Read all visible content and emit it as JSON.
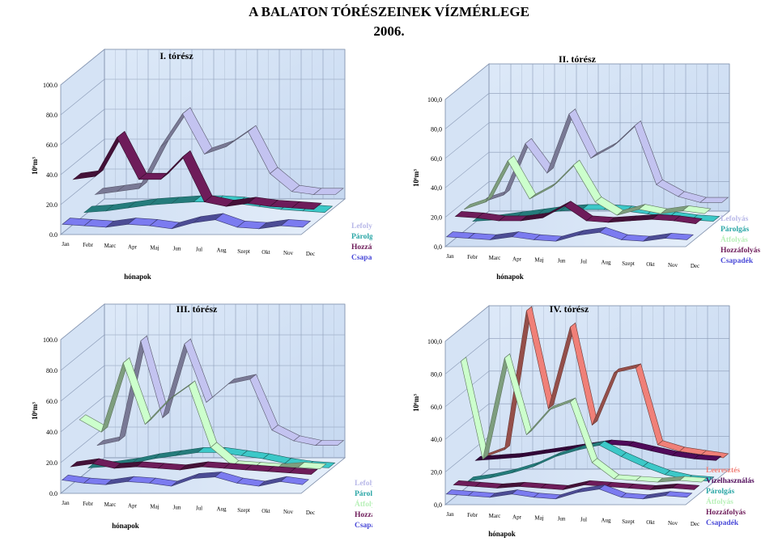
{
  "title": "A BALATON TÓRÉSZEINEK VÍZMÉRLEGE",
  "subtitle": "2006.",
  "colors": {
    "Lefolyás": "#c3c3f0",
    "Párolgás": "#3cc8c8",
    "Átfolyás": "#ccffcc",
    "Hozzáfolyás": "#6e1c5a",
    "Csapadék": "#7b7bf0",
    "Vízelhasználás": "#500a5a",
    "Leeresztés": "#f08078"
  },
  "legend_text_colors": {
    "Lefolyás": "#b8b8e8",
    "Párolgás": "#2aa6a6",
    "Átfolyás": "#b8f0b8",
    "Hozzáfolyás": "#6e1c5a",
    "Csapadék": "#4a4ad8",
    "Vízelhasználás": "#500a5a",
    "Leeresztés": "#f08078"
  },
  "chart_data": [
    {
      "type": "line",
      "title": "I. tórész",
      "xlabel": "hónapok",
      "ylabel": "10⁶m³",
      "categories": [
        "Jan",
        "Febr",
        "Marc",
        "Apr",
        "Maj",
        "Jun",
        "Jul",
        "Aug",
        "Szept",
        "Okt",
        "Nov",
        "Dec"
      ],
      "ylim": [
        0,
        100
      ],
      "yticks": [
        "0.0",
        "20.0",
        "40.0",
        "60.0",
        "80.0",
        "100.0"
      ],
      "series": [
        {
          "name": "Csapadék",
          "values": [
            6,
            5,
            4,
            6,
            5,
            3,
            7,
            9,
            4,
            3,
            5,
            4
          ]
        },
        {
          "name": "Hozzáfolyás",
          "values": [
            30,
            32,
            58,
            30,
            30,
            45,
            15,
            12,
            14,
            12,
            11,
            10
          ]
        },
        {
          "name": "Párolgás",
          "values": [
            2,
            3,
            5,
            7,
            8,
            9,
            9,
            8,
            6,
            4,
            3,
            2
          ]
        },
        {
          "name": "Lefolyás",
          "values": [
            8,
            10,
            12,
            40,
            62,
            35,
            40,
            50,
            22,
            10,
            8,
            8
          ]
        }
      ]
    },
    {
      "type": "line",
      "title": "II. tórész",
      "xlabel": "hónapok",
      "ylabel": "10⁶m³",
      "categories": [
        "Jan",
        "Febr",
        "Marc",
        "Apr",
        "Maj",
        "Jun",
        "Jul",
        "Aug",
        "Szept",
        "Okt",
        "Nov",
        "Dec"
      ],
      "ylim": [
        0,
        100
      ],
      "yticks": [
        "0,0",
        "20,0",
        "40,0",
        "60,0",
        "80,0",
        "100,0"
      ],
      "series": [
        {
          "name": "Csapadék",
          "values": [
            6,
            5,
            4,
            6,
            4,
            3,
            7,
            9,
            4,
            3,
            5,
            4
          ]
        },
        {
          "name": "Hozzáfolyás",
          "values": [
            15,
            14,
            12,
            12,
            14,
            22,
            12,
            11,
            12,
            13,
            12,
            10
          ]
        },
        {
          "name": "Átfolyás",
          "values": [
            15,
            20,
            48,
            22,
            30,
            45,
            20,
            11,
            15,
            12,
            14,
            12
          ]
        },
        {
          "name": "Párolgás",
          "values": [
            2,
            3,
            5,
            7,
            9,
            10,
            10,
            9,
            7,
            5,
            3,
            2
          ]
        },
        {
          "name": "Lefolyás",
          "values": [
            10,
            15,
            50,
            30,
            70,
            40,
            48,
            62,
            22,
            14,
            10,
            10
          ]
        }
      ]
    },
    {
      "type": "line",
      "title": "III. tórész",
      "xlabel": "hónapok",
      "ylabel": "10⁶m³",
      "categories": [
        "Jan",
        "Febr",
        "Marc",
        "Apr",
        "Maj",
        "Jun",
        "Jul",
        "Aug",
        "Szept",
        "Okt",
        "Nov",
        "Dec"
      ],
      "ylim": [
        0,
        100
      ],
      "yticks": [
        "0.0",
        "20.0",
        "40.0",
        "60.0",
        "80.0",
        "100.0"
      ],
      "series": [
        {
          "name": "Csapadék",
          "values": [
            8,
            6,
            5,
            7,
            6,
            4,
            9,
            10,
            6,
            4,
            7,
            5
          ]
        },
        {
          "name": "Hozzáfolyás",
          "values": [
            12,
            14,
            11,
            12,
            11,
            10,
            12,
            11,
            10,
            9,
            8,
            7
          ]
        },
        {
          "name": "Átfolyás",
          "values": [
            38,
            30,
            75,
            35,
            50,
            60,
            20,
            8,
            7,
            6,
            7,
            6
          ]
        },
        {
          "name": "Párolgás",
          "values": [
            2,
            3,
            5,
            8,
            10,
            12,
            12,
            10,
            8,
            5,
            3,
            2
          ]
        },
        {
          "name": "Lefolyás",
          "values": [
            12,
            15,
            80,
            30,
            78,
            40,
            52,
            55,
            22,
            15,
            12,
            12
          ]
        }
      ]
    },
    {
      "type": "line",
      "title": "IV. tórész",
      "xlabel": "hónapok",
      "ylabel": "10⁶m³",
      "categories": [
        "Jan",
        "Febr",
        "Marc",
        "Apr",
        "Maj",
        "Jun",
        "Jul",
        "Aug",
        "Szept",
        "Okt",
        "Nov",
        "Dec"
      ],
      "ylim": [
        0,
        100
      ],
      "yticks": [
        "0,0",
        "20,0",
        "40,0",
        "60,0",
        "80,0",
        "100,0"
      ],
      "series": [
        {
          "name": "Csapadék",
          "values": [
            6,
            5,
            4,
            6,
            4,
            3,
            7,
            9,
            4,
            3,
            5,
            4
          ]
        },
        {
          "name": "Hozzáfolyás",
          "values": [
            8,
            7,
            6,
            7,
            6,
            5,
            8,
            7,
            6,
            5,
            6,
            5
          ]
        },
        {
          "name": "Átfolyás",
          "values": [
            80,
            20,
            82,
            35,
            50,
            55,
            18,
            8,
            7,
            6,
            7,
            6
          ]
        },
        {
          "name": "Párolgás",
          "values": [
            3,
            5,
            8,
            12,
            18,
            22,
            25,
            18,
            12,
            7,
            4,
            3
          ]
        },
        {
          "name": "Vízelhasználás",
          "values": [
            12,
            13,
            14,
            16,
            18,
            20,
            22,
            21,
            18,
            15,
            13,
            12
          ]
        },
        {
          "name": "Leeresztés",
          "values": [
            10,
            15,
            100,
            40,
            90,
            30,
            62,
            65,
            18,
            14,
            12,
            10
          ]
        }
      ]
    }
  ]
}
